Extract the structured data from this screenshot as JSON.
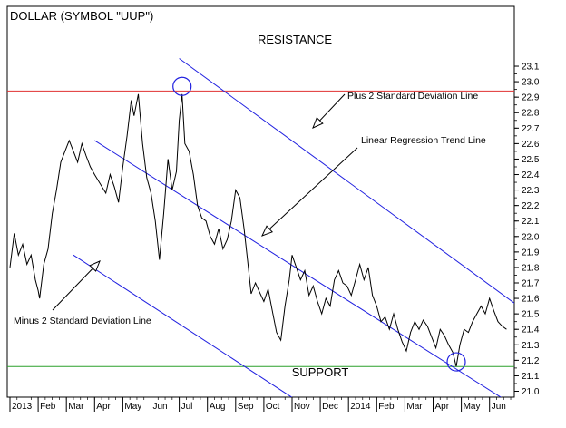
{
  "chart_data": {
    "type": "line",
    "title": "DOLLAR (SYMBOL \"UUP\")",
    "xlabel": "",
    "ylabel": "",
    "ylim": [
      20.93,
      23.17
    ],
    "y_ticks": [
      21.0,
      21.1,
      21.2,
      21.3,
      21.4,
      21.5,
      21.6,
      21.7,
      21.8,
      21.9,
      22.0,
      22.1,
      22.2,
      22.3,
      22.4,
      22.5,
      22.6,
      22.7,
      22.8,
      22.9,
      23.0,
      23.1
    ],
    "x_labels": [
      "2013",
      "Feb",
      "Mar",
      "Apr",
      "May",
      "Jun",
      "Jul",
      "Aug",
      "Sep",
      "Oct",
      "Nov",
      "Dec",
      "2014",
      "Feb",
      "Mar",
      "Apr",
      "May",
      "Jun"
    ],
    "x_label_pos": [
      0,
      1,
      2,
      3,
      4,
      5,
      6,
      7,
      8,
      9,
      10,
      11,
      12,
      13,
      14,
      15,
      16,
      17
    ],
    "xlim": [
      0,
      17.95
    ],
    "series": [
      {
        "values": [
          [
            0.0,
            21.8
          ],
          [
            0.15,
            22.02
          ],
          [
            0.3,
            21.88
          ],
          [
            0.45,
            21.95
          ],
          [
            0.6,
            21.82
          ],
          [
            0.75,
            21.88
          ],
          [
            0.9,
            21.72
          ],
          [
            1.0,
            21.65
          ],
          [
            1.05,
            21.6
          ],
          [
            1.2,
            21.82
          ],
          [
            1.35,
            21.92
          ],
          [
            1.5,
            22.15
          ],
          [
            1.65,
            22.3
          ],
          [
            1.8,
            22.48
          ],
          [
            1.95,
            22.55
          ],
          [
            2.1,
            22.62
          ],
          [
            2.25,
            22.55
          ],
          [
            2.4,
            22.48
          ],
          [
            2.55,
            22.6
          ],
          [
            2.7,
            22.52
          ],
          [
            2.85,
            22.45
          ],
          [
            3.0,
            22.4
          ],
          [
            3.2,
            22.34
          ],
          [
            3.4,
            22.28
          ],
          [
            3.55,
            22.4
          ],
          [
            3.7,
            22.32
          ],
          [
            3.85,
            22.22
          ],
          [
            4.0,
            22.45
          ],
          [
            4.15,
            22.65
          ],
          [
            4.3,
            22.88
          ],
          [
            4.4,
            22.78
          ],
          [
            4.55,
            22.92
          ],
          [
            4.7,
            22.6
          ],
          [
            4.85,
            22.38
          ],
          [
            5.0,
            22.28
          ],
          [
            5.15,
            22.1
          ],
          [
            5.3,
            21.85
          ],
          [
            5.45,
            22.15
          ],
          [
            5.6,
            22.5
          ],
          [
            5.75,
            22.3
          ],
          [
            5.9,
            22.42
          ],
          [
            6.0,
            22.75
          ],
          [
            6.1,
            22.92
          ],
          [
            6.2,
            22.6
          ],
          [
            6.35,
            22.55
          ],
          [
            6.5,
            22.4
          ],
          [
            6.65,
            22.2
          ],
          [
            6.8,
            22.12
          ],
          [
            6.95,
            22.1
          ],
          [
            7.1,
            22.0
          ],
          [
            7.25,
            21.95
          ],
          [
            7.4,
            22.05
          ],
          [
            7.55,
            21.92
          ],
          [
            7.7,
            21.98
          ],
          [
            7.85,
            22.1
          ],
          [
            8.0,
            22.3
          ],
          [
            8.15,
            22.25
          ],
          [
            8.3,
            22.05
          ],
          [
            8.45,
            21.8
          ],
          [
            8.55,
            21.63
          ],
          [
            8.7,
            21.7
          ],
          [
            8.85,
            21.64
          ],
          [
            9.0,
            21.58
          ],
          [
            9.15,
            21.66
          ],
          [
            9.3,
            21.52
          ],
          [
            9.45,
            21.38
          ],
          [
            9.6,
            21.33
          ],
          [
            9.75,
            21.55
          ],
          [
            9.9,
            21.72
          ],
          [
            10.0,
            21.88
          ],
          [
            10.15,
            21.8
          ],
          [
            10.3,
            21.72
          ],
          [
            10.45,
            21.78
          ],
          [
            10.6,
            21.62
          ],
          [
            10.75,
            21.68
          ],
          [
            10.9,
            21.58
          ],
          [
            11.05,
            21.5
          ],
          [
            11.2,
            21.6
          ],
          [
            11.35,
            21.55
          ],
          [
            11.5,
            21.72
          ],
          [
            11.65,
            21.78
          ],
          [
            11.8,
            21.7
          ],
          [
            11.95,
            21.68
          ],
          [
            12.1,
            21.62
          ],
          [
            12.25,
            21.72
          ],
          [
            12.4,
            21.82
          ],
          [
            12.55,
            21.72
          ],
          [
            12.7,
            21.8
          ],
          [
            12.85,
            21.62
          ],
          [
            13.0,
            21.55
          ],
          [
            13.15,
            21.45
          ],
          [
            13.3,
            21.48
          ],
          [
            13.45,
            21.4
          ],
          [
            13.6,
            21.5
          ],
          [
            13.75,
            21.4
          ],
          [
            13.9,
            21.32
          ],
          [
            14.05,
            21.26
          ],
          [
            14.2,
            21.38
          ],
          [
            14.35,
            21.45
          ],
          [
            14.5,
            21.4
          ],
          [
            14.65,
            21.46
          ],
          [
            14.8,
            21.42
          ],
          [
            14.95,
            21.35
          ],
          [
            15.1,
            21.28
          ],
          [
            15.25,
            21.4
          ],
          [
            15.4,
            21.36
          ],
          [
            15.55,
            21.3
          ],
          [
            15.7,
            21.25
          ],
          [
            15.82,
            21.16
          ],
          [
            15.95,
            21.3
          ],
          [
            16.1,
            21.4
          ],
          [
            16.25,
            21.38
          ],
          [
            16.4,
            21.45
          ],
          [
            16.55,
            21.5
          ],
          [
            16.7,
            21.55
          ],
          [
            16.85,
            21.5
          ],
          [
            17.0,
            21.6
          ],
          [
            17.15,
            21.52
          ],
          [
            17.3,
            21.45
          ],
          [
            17.45,
            21.42
          ],
          [
            17.6,
            21.4
          ]
        ]
      }
    ],
    "lines": {
      "resistance": {
        "label": "RESISTANCE",
        "value": 22.94,
        "color": "#e03030"
      },
      "support": {
        "label": "SUPPORT",
        "value": 21.16,
        "color": "#2ca02c"
      },
      "regression": {
        "label": "Linear Regression Trend Line",
        "from": [
          3.0,
          22.62
        ],
        "to": [
          17.5,
          20.95
        ],
        "color": "#2020e0"
      },
      "plus2": {
        "label": "Plus 2 Standard Deviation Line",
        "from": [
          6.0,
          23.15
        ],
        "to": [
          17.95,
          21.56
        ],
        "color": "#2020e0"
      },
      "minus2": {
        "label": "Minus 2 Standard Deviation Line",
        "from": [
          2.25,
          21.88
        ],
        "to": [
          10.0,
          20.96
        ],
        "color": "#2020e0"
      }
    },
    "circles": [
      {
        "at": [
          6.1,
          22.97
        ]
      },
      {
        "at": [
          15.82,
          21.19
        ]
      }
    ],
    "grid": false,
    "legend": "none"
  }
}
